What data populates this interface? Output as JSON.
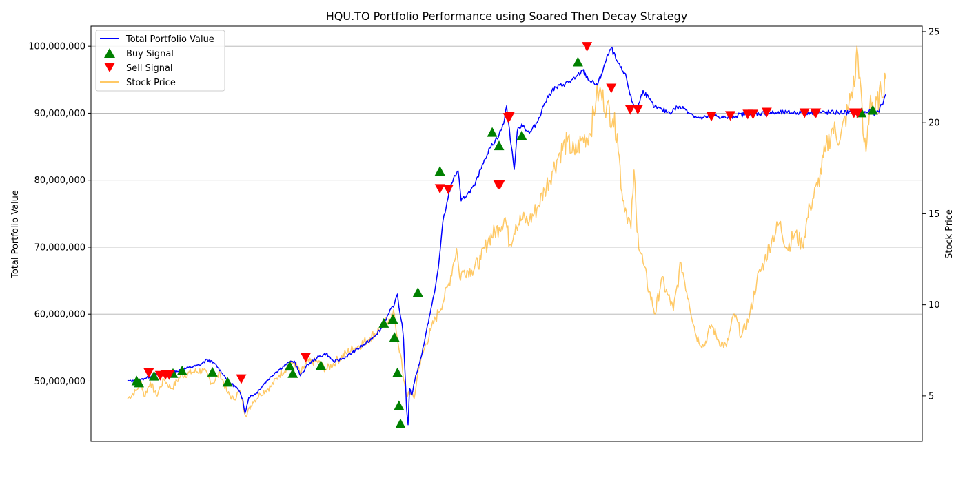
{
  "chart_data": {
    "type": "line",
    "title": "HQU.TO Portfolio Performance using Soared Then Decay Strategy",
    "xlabel": "",
    "ylabel": "Total Portfolio Value",
    "y2label": "Stock Price",
    "x_range": [
      0,
      1000
    ],
    "ylim": [
      41000000,
      103000000
    ],
    "y2lim": [
      2.5,
      25.3
    ],
    "yticks": [
      50000000,
      60000000,
      70000000,
      80000000,
      90000000,
      100000000
    ],
    "ytick_labels": [
      "50,000,000",
      "60,000,000",
      "70,000,000",
      "80,000,000",
      "90,000,000",
      "100,000,000"
    ],
    "y2ticks": [
      5,
      10,
      15,
      20,
      25
    ],
    "y2tick_labels": [
      "5",
      "10",
      "15",
      "20",
      "25"
    ],
    "grid": "horizontal",
    "legend_position": "top-left",
    "legend": [
      "Total Portfolio Value",
      "Buy Signal",
      "Sell Signal",
      "Stock Price"
    ],
    "colors": {
      "portfolio": "#0000ff",
      "buy": "#008000",
      "sell": "#ff0000",
      "price": "#ffa500"
    },
    "series": [
      {
        "name": "Total Portfolio Value",
        "axis": "left",
        "points": [
          [
            0,
            50000000
          ],
          [
            12,
            50000000
          ],
          [
            22,
            50400000
          ],
          [
            35,
            50900000
          ],
          [
            50,
            51200000
          ],
          [
            65,
            51500000
          ],
          [
            80,
            52000000
          ],
          [
            95,
            52400000
          ],
          [
            105,
            53200000
          ],
          [
            115,
            52600000
          ],
          [
            125,
            51200000
          ],
          [
            135,
            49800000
          ],
          [
            145,
            48900000
          ],
          [
            152,
            47300000
          ],
          [
            155,
            45200000
          ],
          [
            160,
            47600000
          ],
          [
            170,
            48200000
          ],
          [
            180,
            49600000
          ],
          [
            195,
            51300000
          ],
          [
            210,
            52600000
          ],
          [
            220,
            53000000
          ],
          [
            228,
            50800000
          ],
          [
            238,
            52500000
          ],
          [
            250,
            53500000
          ],
          [
            262,
            54100000
          ],
          [
            272,
            52900000
          ],
          [
            285,
            53400000
          ],
          [
            300,
            54500000
          ],
          [
            320,
            56100000
          ],
          [
            335,
            57900000
          ],
          [
            345,
            60200000
          ],
          [
            352,
            61500000
          ],
          [
            356,
            63000000
          ],
          [
            358,
            61000000
          ],
          [
            362,
            58600000
          ],
          [
            364,
            56300000
          ],
          [
            366,
            51200000
          ],
          [
            368,
            45900000
          ],
          [
            370,
            43500000
          ],
          [
            372,
            48900000
          ],
          [
            375,
            47900000
          ],
          [
            380,
            50800000
          ],
          [
            385,
            52600000
          ],
          [
            392,
            56100000
          ],
          [
            398,
            59600000
          ],
          [
            405,
            63300000
          ],
          [
            410,
            67000000
          ],
          [
            416,
            73900000
          ],
          [
            420,
            75800000
          ],
          [
            424,
            78200000
          ],
          [
            430,
            80300000
          ],
          [
            436,
            81400000
          ],
          [
            440,
            76900000
          ],
          [
            448,
            77900000
          ],
          [
            458,
            79200000
          ],
          [
            468,
            82400000
          ],
          [
            478,
            84800000
          ],
          [
            490,
            86800000
          ],
          [
            496,
            88400000
          ],
          [
            500,
            91100000
          ],
          [
            506,
            85200000
          ],
          [
            510,
            81600000
          ],
          [
            514,
            87300000
          ],
          [
            520,
            88400000
          ],
          [
            530,
            87000000
          ],
          [
            540,
            88600000
          ],
          [
            550,
            91500000
          ],
          [
            560,
            93500000
          ],
          [
            575,
            94300000
          ],
          [
            590,
            95100000
          ],
          [
            600,
            96400000
          ],
          [
            610,
            94800000
          ],
          [
            620,
            94200000
          ],
          [
            630,
            97500000
          ],
          [
            638,
            99800000
          ],
          [
            644,
            98100000
          ],
          [
            650,
            96800000
          ],
          [
            658,
            95300000
          ],
          [
            665,
            91800000
          ],
          [
            672,
            90500000
          ],
          [
            680,
            93400000
          ],
          [
            688,
            92100000
          ],
          [
            695,
            90900000
          ],
          [
            705,
            90500000
          ],
          [
            715,
            90100000
          ],
          [
            725,
            90900000
          ],
          [
            735,
            90700000
          ],
          [
            745,
            89800000
          ],
          [
            755,
            89200000
          ],
          [
            765,
            89400000
          ],
          [
            775,
            89600000
          ],
          [
            790,
            89300000
          ],
          [
            805,
            89700000
          ],
          [
            820,
            89900000
          ],
          [
            840,
            90000000
          ],
          [
            870,
            90100000
          ],
          [
            900,
            90100000
          ],
          [
            940,
            90100000
          ],
          [
            975,
            90100000
          ],
          [
            980,
            90600000
          ],
          [
            985,
            89600000
          ],
          [
            990,
            90300000
          ],
          [
            995,
            91200000
          ],
          [
            1000,
            92800000
          ]
        ]
      },
      {
        "name": "Stock Price",
        "axis": "right",
        "points": [
          [
            0,
            4.85
          ],
          [
            12,
            5.3
          ],
          [
            18,
            5.8
          ],
          [
            22,
            4.95
          ],
          [
            30,
            5.75
          ],
          [
            38,
            5.0
          ],
          [
            48,
            5.9
          ],
          [
            58,
            5.4
          ],
          [
            70,
            6.1
          ],
          [
            85,
            6.3
          ],
          [
            100,
            6.4
          ],
          [
            112,
            5.7
          ],
          [
            122,
            6.25
          ],
          [
            132,
            5.15
          ],
          [
            140,
            4.8
          ],
          [
            148,
            5.3
          ],
          [
            156,
            3.9
          ],
          [
            165,
            4.65
          ],
          [
            175,
            5.1
          ],
          [
            190,
            5.55
          ],
          [
            200,
            6.15
          ],
          [
            210,
            6.55
          ],
          [
            220,
            6.85
          ],
          [
            228,
            6.2
          ],
          [
            236,
            6.8
          ],
          [
            250,
            6.9
          ],
          [
            262,
            6.45
          ],
          [
            275,
            6.9
          ],
          [
            290,
            7.4
          ],
          [
            305,
            7.75
          ],
          [
            320,
            8.2
          ],
          [
            335,
            8.75
          ],
          [
            345,
            9.25
          ],
          [
            352,
            9.45
          ],
          [
            356,
            8.1
          ],
          [
            360,
            7.3
          ],
          [
            364,
            5.9
          ],
          [
            368,
            4.95
          ],
          [
            372,
            5.3
          ],
          [
            378,
            4.85
          ],
          [
            384,
            6.55
          ],
          [
            392,
            7.65
          ],
          [
            400,
            8.6
          ],
          [
            410,
            9.6
          ],
          [
            418,
            10.4
          ],
          [
            424,
            11.2
          ],
          [
            430,
            12.3
          ],
          [
            434,
            13.1
          ],
          [
            438,
            11.5
          ],
          [
            444,
            11.9
          ],
          [
            454,
            11.9
          ],
          [
            466,
            12.5
          ],
          [
            476,
            13.6
          ],
          [
            490,
            14.25
          ],
          [
            498,
            14.8
          ],
          [
            504,
            13.3
          ],
          [
            512,
            14.4
          ],
          [
            520,
            14.7
          ],
          [
            530,
            14.6
          ],
          [
            540,
            15.3
          ],
          [
            550,
            16.3
          ],
          [
            560,
            17.3
          ],
          [
            570,
            18.35
          ],
          [
            580,
            18.95
          ],
          [
            590,
            18.25
          ],
          [
            598,
            19.0
          ],
          [
            610,
            19.4
          ],
          [
            618,
            21.3
          ],
          [
            622,
            21.7
          ],
          [
            632,
            20.9
          ],
          [
            640,
            20.2
          ],
          [
            646,
            19.4
          ],
          [
            652,
            16.2
          ],
          [
            658,
            15.1
          ],
          [
            664,
            14.2
          ],
          [
            668,
            17.4
          ],
          [
            672,
            14.0
          ],
          [
            680,
            12.3
          ],
          [
            688,
            10.75
          ],
          [
            696,
            9.5
          ],
          [
            704,
            11.4
          ],
          [
            712,
            10.6
          ],
          [
            720,
            9.7
          ],
          [
            730,
            12.3
          ],
          [
            740,
            10.3
          ],
          [
            750,
            8.3
          ],
          [
            760,
            7.7
          ],
          [
            770,
            8.9
          ],
          [
            780,
            8.0
          ],
          [
            790,
            7.7
          ],
          [
            800,
            9.5
          ],
          [
            810,
            8.3
          ],
          [
            820,
            9.3
          ],
          [
            830,
            11.3
          ],
          [
            840,
            12.4
          ],
          [
            850,
            13.6
          ],
          [
            860,
            14.5
          ],
          [
            870,
            13.1
          ],
          [
            880,
            13.9
          ],
          [
            890,
            13.3
          ],
          [
            900,
            15.4
          ],
          [
            910,
            16.5
          ],
          [
            920,
            18.4
          ],
          [
            930,
            19.7
          ],
          [
            940,
            19.1
          ],
          [
            950,
            20.7
          ],
          [
            960,
            22.5
          ],
          [
            962,
            24.2
          ],
          [
            966,
            22.5
          ],
          [
            970,
            19.4
          ],
          [
            974,
            18.4
          ],
          [
            980,
            21.5
          ],
          [
            986,
            20.6
          ],
          [
            994,
            21.7
          ],
          [
            1000,
            22.4
          ]
        ]
      }
    ],
    "buy_signals": [
      [
        12,
        50000000
      ],
      [
        15,
        49700000
      ],
      [
        35,
        50700000
      ],
      [
        60,
        51100000
      ],
      [
        72,
        51500000
      ],
      [
        112,
        51300000
      ],
      [
        132,
        49800000
      ],
      [
        214,
        52200000
      ],
      [
        218,
        51100000
      ],
      [
        255,
        52300000
      ],
      [
        338,
        58600000
      ],
      [
        350,
        59200000
      ],
      [
        352,
        56500000
      ],
      [
        356,
        51200000
      ],
      [
        358,
        46300000
      ],
      [
        360,
        43600000
      ],
      [
        383,
        63200000
      ],
      [
        412,
        81300000
      ],
      [
        481,
        87100000
      ],
      [
        490,
        85100000
      ],
      [
        520,
        86600000
      ],
      [
        594,
        97600000
      ],
      [
        968,
        90000000
      ],
      [
        983,
        90400000
      ]
    ],
    "sell_signals": [
      [
        28,
        51300000
      ],
      [
        43,
        50900000
      ],
      [
        50,
        51000000
      ],
      [
        55,
        51000000
      ],
      [
        150,
        50400000
      ],
      [
        235,
        53600000
      ],
      [
        412,
        78800000
      ],
      [
        423,
        78700000
      ],
      [
        489,
        79400000
      ],
      [
        491,
        79400000
      ],
      [
        502,
        89400000
      ],
      [
        504,
        89600000
      ],
      [
        606,
        100000000
      ],
      [
        638,
        93800000
      ],
      [
        663,
        90600000
      ],
      [
        673,
        90600000
      ],
      [
        770,
        89600000
      ],
      [
        795,
        89700000
      ],
      [
        818,
        89900000
      ],
      [
        825,
        89900000
      ],
      [
        843,
        90200000
      ],
      [
        893,
        90100000
      ],
      [
        907,
        90100000
      ],
      [
        908,
        90100000
      ],
      [
        958,
        90100000
      ],
      [
        963,
        90100000
      ]
    ]
  }
}
